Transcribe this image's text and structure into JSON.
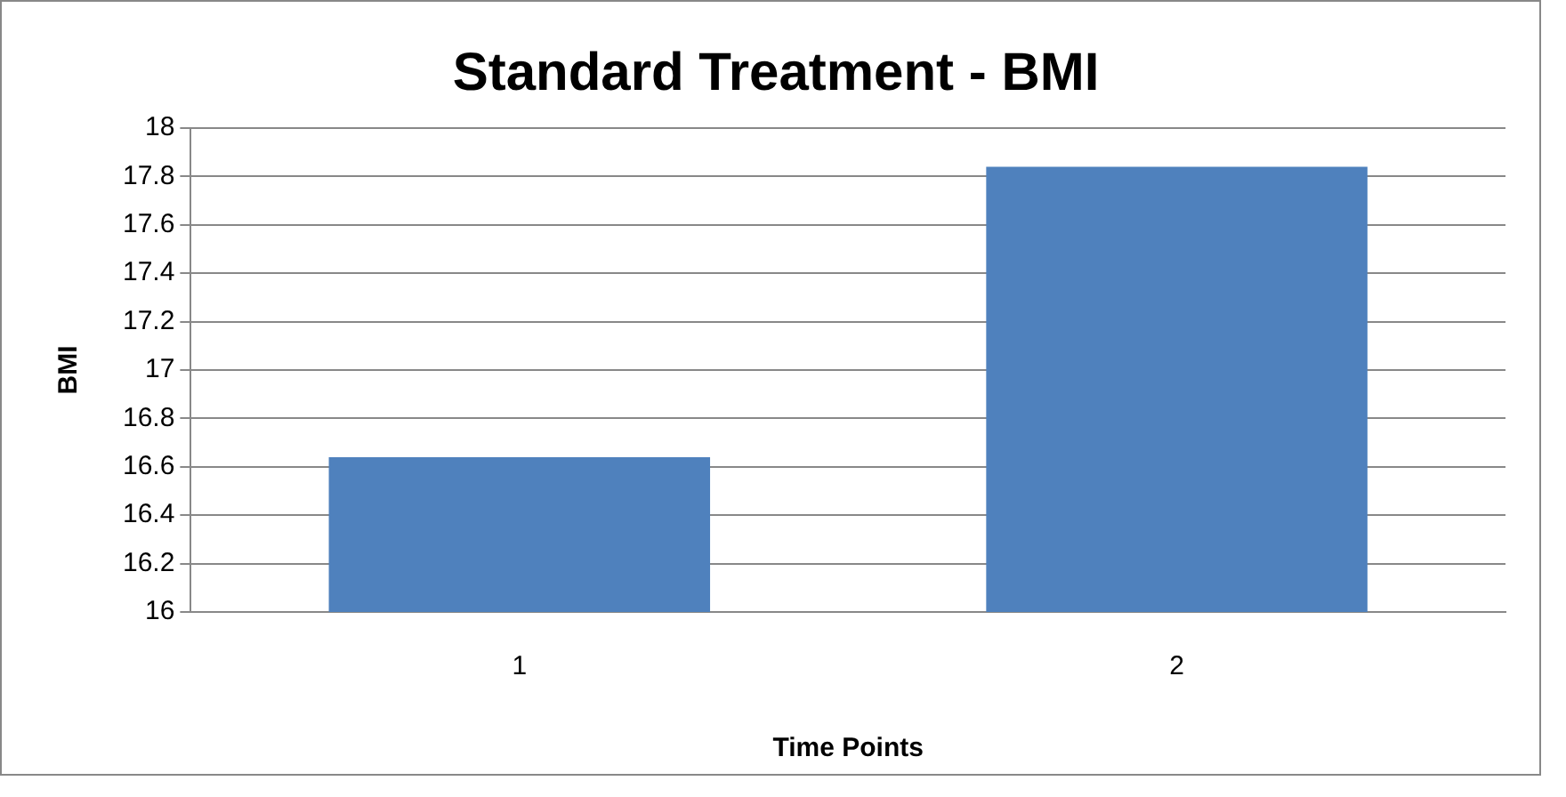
{
  "chart_data": {
    "type": "bar",
    "title": "Standard Treatment - BMI",
    "xlabel": "Time Points",
    "ylabel": "BMI",
    "categories": [
      "1",
      "2"
    ],
    "values": [
      16.64,
      17.84
    ],
    "color": "#4f81bd",
    "ylim": [
      16,
      18
    ],
    "yticks": [
      16,
      16.2,
      16.4,
      16.6,
      16.8,
      17,
      17.2,
      17.4,
      17.6,
      17.8,
      18
    ],
    "grid": "y",
    "legend": false
  }
}
